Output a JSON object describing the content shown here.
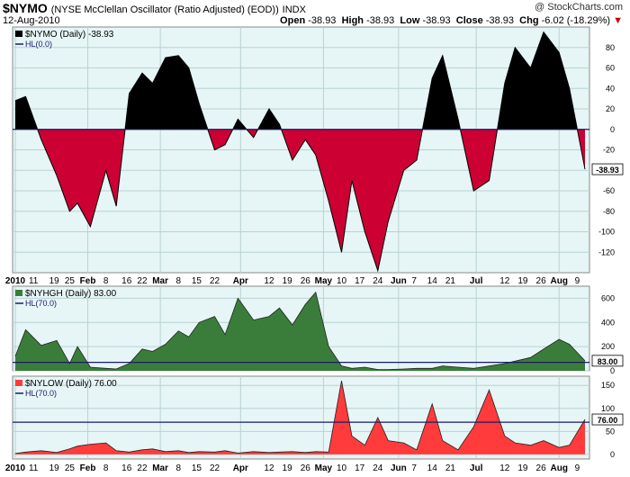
{
  "header": {
    "symbol": "$NYMO",
    "description": "(NYSE McClellan Oscillator (Ratio Adjusted) (EOD))",
    "exchange": "INDX",
    "date": "12-Aug-2010",
    "brand": "@ StockCharts.com",
    "open_label": "Open",
    "open": "-38.93",
    "high_label": "High",
    "high": "-38.93",
    "low_label": "Low",
    "low": "-38.93",
    "close_label": "Close",
    "close": "-38.93",
    "chg_label": "Chg",
    "chg": "-6.02 (-18.29%)",
    "chg_arrow": "▼"
  },
  "colors": {
    "positive": "#000000",
    "negative": "#cc0033",
    "nyhgh": "#3a7d3a",
    "nylow": "#ff3b3b",
    "panel_bg": "#e6f5f5",
    "hl_line": "#1a1a6e"
  },
  "chart_data": [
    {
      "type": "area",
      "title": "$NYMO (Daily) -38.93",
      "legend_hl": "HL(0.0)",
      "hl_value": 0,
      "current_label": "-38.93",
      "ylim": [
        -140,
        100
      ],
      "yticks": [
        80,
        60,
        40,
        20,
        0,
        -20,
        -40,
        -60,
        -80,
        -100,
        -120
      ],
      "x": [
        "2010-01-04",
        "2010-01-08",
        "2010-01-14",
        "2010-01-20",
        "2010-01-25",
        "2010-01-28",
        "2010-02-02",
        "2010-02-08",
        "2010-02-12",
        "2010-02-17",
        "2010-02-22",
        "2010-02-26",
        "2010-03-03",
        "2010-03-08",
        "2010-03-12",
        "2010-03-16",
        "2010-03-22",
        "2010-03-26",
        "2010-03-31",
        "2010-04-06",
        "2010-04-12",
        "2010-04-16",
        "2010-04-21",
        "2010-04-26",
        "2010-04-30",
        "2010-05-05",
        "2010-05-10",
        "2010-05-14",
        "2010-05-19",
        "2010-05-24",
        "2010-05-28",
        "2010-06-03",
        "2010-06-08",
        "2010-06-14",
        "2010-06-18",
        "2010-06-24",
        "2010-06-30",
        "2010-07-06",
        "2010-07-12",
        "2010-07-16",
        "2010-07-22",
        "2010-07-27",
        "2010-08-02",
        "2010-08-06",
        "2010-08-12"
      ],
      "values": [
        28,
        32,
        -10,
        -45,
        -80,
        -72,
        -95,
        -40,
        -75,
        35,
        55,
        45,
        70,
        72,
        60,
        25,
        -20,
        -15,
        10,
        -8,
        20,
        5,
        -30,
        -10,
        -25,
        -70,
        -120,
        -50,
        -100,
        -138,
        -90,
        -40,
        -30,
        50,
        72,
        10,
        -60,
        -50,
        45,
        80,
        60,
        95,
        75,
        40,
        -38.93
      ]
    },
    {
      "type": "area",
      "title": "$NYHGH (Daily) 83.00",
      "legend_hl": "HL(70.0)",
      "hl_value": 70,
      "current_label": "83.00",
      "ylim": [
        0,
        700
      ],
      "yticks": [
        600,
        400,
        200,
        0
      ],
      "x": [
        "2010-01-04",
        "2010-01-08",
        "2010-01-14",
        "2010-01-20",
        "2010-01-25",
        "2010-01-28",
        "2010-02-02",
        "2010-02-08",
        "2010-02-12",
        "2010-02-17",
        "2010-02-22",
        "2010-02-26",
        "2010-03-03",
        "2010-03-08",
        "2010-03-12",
        "2010-03-16",
        "2010-03-22",
        "2010-03-26",
        "2010-03-31",
        "2010-04-06",
        "2010-04-12",
        "2010-04-16",
        "2010-04-21",
        "2010-04-26",
        "2010-04-30",
        "2010-05-05",
        "2010-05-10",
        "2010-05-14",
        "2010-05-19",
        "2010-05-24",
        "2010-05-28",
        "2010-06-03",
        "2010-06-08",
        "2010-06-14",
        "2010-06-18",
        "2010-06-24",
        "2010-06-30",
        "2010-07-06",
        "2010-07-12",
        "2010-07-16",
        "2010-07-22",
        "2010-07-27",
        "2010-08-02",
        "2010-08-06",
        "2010-08-12"
      ],
      "values": [
        120,
        340,
        210,
        250,
        60,
        200,
        30,
        20,
        15,
        60,
        180,
        160,
        220,
        330,
        280,
        400,
        450,
        300,
        600,
        420,
        450,
        520,
        380,
        550,
        650,
        200,
        40,
        20,
        30,
        10,
        10,
        15,
        20,
        20,
        40,
        30,
        20,
        40,
        60,
        80,
        110,
        180,
        260,
        220,
        83
      ]
    },
    {
      "type": "area",
      "title": "$NYLOW (Daily) 76.00",
      "legend_hl": "HL(70.0)",
      "hl_value": 70,
      "current_label": "76.00",
      "ylim": [
        -10,
        170
      ],
      "yticks": [
        150,
        100,
        50,
        0
      ],
      "x": [
        "2010-01-04",
        "2010-01-08",
        "2010-01-14",
        "2010-01-20",
        "2010-01-25",
        "2010-01-28",
        "2010-02-02",
        "2010-02-08",
        "2010-02-12",
        "2010-02-17",
        "2010-02-22",
        "2010-02-26",
        "2010-03-03",
        "2010-03-08",
        "2010-03-12",
        "2010-03-16",
        "2010-03-22",
        "2010-03-26",
        "2010-03-31",
        "2010-04-06",
        "2010-04-12",
        "2010-04-16",
        "2010-04-21",
        "2010-04-26",
        "2010-04-30",
        "2010-05-05",
        "2010-05-10",
        "2010-05-14",
        "2010-05-19",
        "2010-05-24",
        "2010-05-28",
        "2010-06-03",
        "2010-06-08",
        "2010-06-14",
        "2010-06-18",
        "2010-06-24",
        "2010-06-30",
        "2010-07-06",
        "2010-07-12",
        "2010-07-16",
        "2010-07-22",
        "2010-07-27",
        "2010-08-02",
        "2010-08-06",
        "2010-08-12"
      ],
      "values": [
        2,
        5,
        8,
        4,
        12,
        18,
        22,
        25,
        8,
        5,
        10,
        12,
        6,
        8,
        4,
        6,
        5,
        8,
        3,
        6,
        4,
        5,
        6,
        4,
        6,
        5,
        160,
        40,
        20,
        80,
        30,
        25,
        10,
        110,
        30,
        10,
        60,
        140,
        40,
        25,
        20,
        30,
        15,
        20,
        76
      ]
    }
  ],
  "x_axis_labels": [
    {
      "label": "2010",
      "date": "2010-01-04",
      "bold": true
    },
    {
      "label": "11",
      "date": "2010-01-11"
    },
    {
      "label": "19",
      "date": "2010-01-19"
    },
    {
      "label": "25",
      "date": "2010-01-25"
    },
    {
      "label": "Feb",
      "date": "2010-02-01",
      "bold": true
    },
    {
      "label": "8",
      "date": "2010-02-08"
    },
    {
      "label": "16",
      "date": "2010-02-16"
    },
    {
      "label": "22",
      "date": "2010-02-22"
    },
    {
      "label": "Mar",
      "date": "2010-03-01",
      "bold": true
    },
    {
      "label": "8",
      "date": "2010-03-08"
    },
    {
      "label": "15",
      "date": "2010-03-15"
    },
    {
      "label": "22",
      "date": "2010-03-22"
    },
    {
      "label": "Apr",
      "date": "2010-04-01",
      "bold": true
    },
    {
      "label": "12",
      "date": "2010-04-12"
    },
    {
      "label": "19",
      "date": "2010-04-19"
    },
    {
      "label": "26",
      "date": "2010-04-26"
    },
    {
      "label": "May",
      "date": "2010-05-03",
      "bold": true
    },
    {
      "label": "10",
      "date": "2010-05-10"
    },
    {
      "label": "17",
      "date": "2010-05-17"
    },
    {
      "label": "24",
      "date": "2010-05-24"
    },
    {
      "label": "Jun",
      "date": "2010-06-01",
      "bold": true
    },
    {
      "label": "7",
      "date": "2010-06-07"
    },
    {
      "label": "14",
      "date": "2010-06-14"
    },
    {
      "label": "21",
      "date": "2010-06-21"
    },
    {
      "label": "Jul",
      "date": "2010-07-01",
      "bold": true
    },
    {
      "label": "12",
      "date": "2010-07-12"
    },
    {
      "label": "19",
      "date": "2010-07-19"
    },
    {
      "label": "26",
      "date": "2010-07-26"
    },
    {
      "label": "Aug",
      "date": "2010-08-02",
      "bold": true
    },
    {
      "label": "9",
      "date": "2010-08-09"
    }
  ]
}
